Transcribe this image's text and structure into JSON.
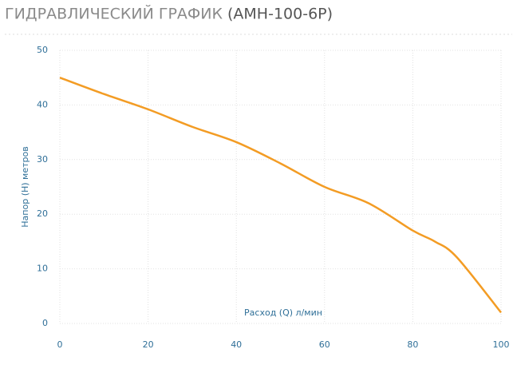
{
  "chart_data": {
    "type": "line",
    "title": "ГИДРАВЛИЧЕСКИЙ ГРАФИК",
    "subtitle": "(АМН-100-6Р)",
    "x_label": "Расход (Q) л/мин",
    "y_label": "Напор (H) метров",
    "x": [
      0,
      10,
      20,
      30,
      40,
      50,
      60,
      70,
      80,
      85,
      90,
      100
    ],
    "series": [
      {
        "color": "#f39c24",
        "values": [
          45,
          42,
          39.2,
          36,
          33.2,
          29.3,
          25,
          22,
          17,
          15,
          12.1,
          2
        ]
      }
    ],
    "xlim": [
      0,
      100
    ],
    "xticks": [
      0,
      20,
      40,
      60,
      80,
      100
    ],
    "ylim": [
      0,
      50
    ],
    "yticks": [
      0,
      10,
      20,
      30,
      40,
      50
    ],
    "grid": true
  }
}
